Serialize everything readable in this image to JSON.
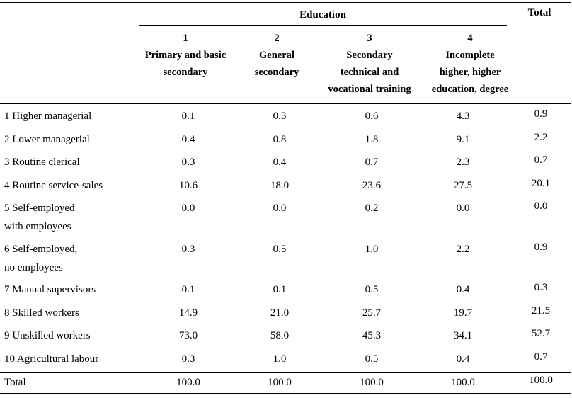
{
  "header": {
    "group_label": "Education",
    "total_label": "Total",
    "columns": [
      {
        "number": "1",
        "line1": "Primary and basic",
        "line2": "secondary",
        "line3": ""
      },
      {
        "number": "2",
        "line1": "General",
        "line2": "secondary",
        "line3": ""
      },
      {
        "number": "3",
        "line1": "Secondary",
        "line2": "technical and",
        "line3": "vocational training"
      },
      {
        "number": "4",
        "line1": "Incomplete",
        "line2": "higher, higher",
        "line3": "education, degree"
      }
    ]
  },
  "rows": [
    {
      "label1": "1 Higher managerial",
      "label2": "",
      "values": [
        "0.1",
        "0.3",
        "0.6",
        "4.3"
      ],
      "total": "0.9"
    },
    {
      "label1": "2 Lower managerial",
      "label2": "",
      "values": [
        "0.4",
        "0.8",
        "1.8",
        "9.1"
      ],
      "total": "2.2"
    },
    {
      "label1": "3 Routine clerical",
      "label2": "",
      "values": [
        "0.3",
        "0.4",
        "0.7",
        "2.3"
      ],
      "total": "0.7"
    },
    {
      "label1": "4 Routine service-sales",
      "label2": "",
      "values": [
        "10.6",
        "18.0",
        "23.6",
        "27.5"
      ],
      "total": "20.1"
    },
    {
      "label1": "5 Self-employed",
      "label2": "with employees",
      "values": [
        "0.0",
        "0.0",
        "0.2",
        "0.0"
      ],
      "total": "0.0"
    },
    {
      "label1": "6 Self-employed,",
      "label2": "no employees",
      "values": [
        "0.3",
        "0.5",
        "1.0",
        "2.2"
      ],
      "total": "0.9"
    },
    {
      "label1": "7 Manual supervisors",
      "label2": "",
      "values": [
        "0.1",
        "0.1",
        "0.5",
        "0.4"
      ],
      "total": "0.3"
    },
    {
      "label1": "8 Skilled workers",
      "label2": "",
      "values": [
        "14.9",
        "21.0",
        "25.7",
        "19.7"
      ],
      "total": "21.5"
    },
    {
      "label1": "9 Unskilled workers",
      "label2": "",
      "values": [
        "73.0",
        "58.0",
        "45.3",
        "34.1"
      ],
      "total": "52.7"
    },
    {
      "label1": "10 Agricultural labour",
      "label2": "",
      "values": [
        "0.3",
        "1.0",
        "0.5",
        "0.4"
      ],
      "total": "0.7"
    },
    {
      "label1": "Total",
      "label2": "",
      "values": [
        "100.0",
        "100.0",
        "100.0",
        "100.0"
      ],
      "total": "100.0"
    }
  ]
}
